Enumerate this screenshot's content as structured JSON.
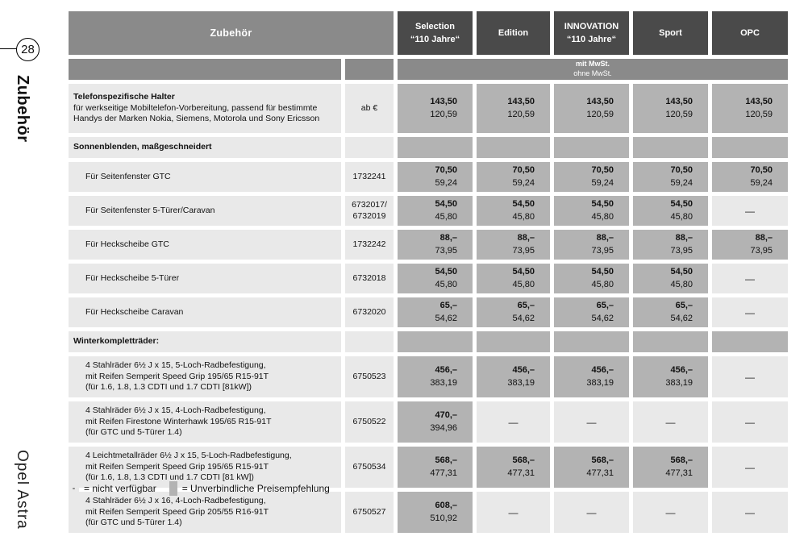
{
  "colors": {
    "dark_header": "#4a4a4a",
    "band": "#8a8a8a",
    "price_cell": "#b3b3b3",
    "row_light": "#e9e9e9"
  },
  "page": {
    "page_number": "28",
    "rotated_top": "Zubehör",
    "rotated_bottom": "Opel Astra"
  },
  "table": {
    "title": "Zubehör",
    "columns": [
      {
        "lines": [
          "Selection",
          "“110 Jahre“"
        ]
      },
      {
        "lines": [
          "Edition"
        ]
      },
      {
        "lines": [
          "INNOVATION",
          "“110 Jahre“"
        ]
      },
      {
        "lines": [
          "Sport"
        ]
      },
      {
        "lines": [
          "OPC"
        ]
      }
    ],
    "tax_note": {
      "line1": "mit MwSt.",
      "line2": "ohne MwSt."
    },
    "rows": [
      {
        "type": "item",
        "indent": false,
        "lines": [
          {
            "text": "Telefonspezifische Halter",
            "bold": true
          },
          {
            "text": "für werkseitige Mobiltelefon-Vorbereitung, passend für bestimmte"
          },
          {
            "text": "Handys der Marken Nokia, Siemens, Motorola und Sony Ericsson"
          }
        ],
        "article": [
          "ab €"
        ],
        "prices": [
          {
            "g": "143,50",
            "n": "120,59"
          },
          {
            "g": "143,50",
            "n": "120,59"
          },
          {
            "g": "143,50",
            "n": "120,59"
          },
          {
            "g": "143,50",
            "n": "120,59"
          },
          {
            "g": "143,50",
            "n": "120,59"
          }
        ]
      },
      {
        "type": "section",
        "lines": [
          {
            "text": "Sonnenblenden, maßgeschneidert",
            "bold": true
          }
        ],
        "article": [],
        "prices": [
          {
            "blank": true
          },
          {
            "blank": true
          },
          {
            "blank": true
          },
          {
            "blank": true
          },
          {
            "blank": true
          }
        ]
      },
      {
        "type": "item",
        "indent": true,
        "lines": [
          {
            "text": "Für Seitenfenster GTC"
          }
        ],
        "article": [
          "1732241"
        ],
        "prices": [
          {
            "g": "70,50",
            "n": "59,24"
          },
          {
            "g": "70,50",
            "n": "59,24"
          },
          {
            "g": "70,50",
            "n": "59,24"
          },
          {
            "g": "70,50",
            "n": "59,24"
          },
          {
            "g": "70,50",
            "n": "59,24"
          }
        ]
      },
      {
        "type": "item",
        "indent": true,
        "lines": [
          {
            "text": "Für Seitenfenster 5-Türer/Caravan"
          }
        ],
        "article": [
          "6732017/",
          "6732019"
        ],
        "prices": [
          {
            "g": "54,50",
            "n": "45,80"
          },
          {
            "g": "54,50",
            "n": "45,80"
          },
          {
            "g": "54,50",
            "n": "45,80"
          },
          {
            "g": "54,50",
            "n": "45,80"
          },
          {
            "dash": true
          }
        ]
      },
      {
        "type": "item",
        "indent": true,
        "lines": [
          {
            "text": "Für Heckscheibe GTC"
          }
        ],
        "article": [
          "1732242"
        ],
        "prices": [
          {
            "g": "88,–",
            "n": "73,95"
          },
          {
            "g": "88,–",
            "n": "73,95"
          },
          {
            "g": "88,–",
            "n": "73,95"
          },
          {
            "g": "88,–",
            "n": "73,95"
          },
          {
            "g": "88,–",
            "n": "73,95"
          }
        ]
      },
      {
        "type": "item",
        "indent": true,
        "lines": [
          {
            "text": "Für Heckscheibe 5-Türer"
          }
        ],
        "article": [
          "6732018"
        ],
        "prices": [
          {
            "g": "54,50",
            "n": "45,80"
          },
          {
            "g": "54,50",
            "n": "45,80"
          },
          {
            "g": "54,50",
            "n": "45,80"
          },
          {
            "g": "54,50",
            "n": "45,80"
          },
          {
            "dash": true
          }
        ]
      },
      {
        "type": "item",
        "indent": true,
        "lines": [
          {
            "text": "Für Heckscheibe Caravan"
          }
        ],
        "article": [
          "6732020"
        ],
        "prices": [
          {
            "g": "65,–",
            "n": "54,62"
          },
          {
            "g": "65,–",
            "n": "54,62"
          },
          {
            "g": "65,–",
            "n": "54,62"
          },
          {
            "g": "65,–",
            "n": "54,62"
          },
          {
            "dash": true
          }
        ]
      },
      {
        "type": "section",
        "lines": [
          {
            "text": "Winterkompletträder:",
            "bold": true
          }
        ],
        "article": [],
        "prices": [
          {
            "blank": true
          },
          {
            "blank": true
          },
          {
            "blank": true
          },
          {
            "blank": true
          },
          {
            "blank": true
          }
        ]
      },
      {
        "type": "item",
        "indent": true,
        "lines": [
          {
            "text": "4 Stahlräder 6½ J x 15, 5-Loch-Radbefestigung,"
          },
          {
            "text": "mit Reifen Semperit Speed Grip 195/65 R15-91T"
          },
          {
            "text": "(für 1.6, 1.8, 1.3 CDTI und 1.7 CDTI [81kW])"
          }
        ],
        "article": [
          "6750523"
        ],
        "prices": [
          {
            "g": "456,–",
            "n": "383,19"
          },
          {
            "g": "456,–",
            "n": "383,19"
          },
          {
            "g": "456,–",
            "n": "383,19"
          },
          {
            "g": "456,–",
            "n": "383,19"
          },
          {
            "dash": true
          }
        ]
      },
      {
        "type": "item",
        "indent": true,
        "lines": [
          {
            "text": "4 Stahlräder 6½ J x 15, 4-Loch-Radbefestigung,"
          },
          {
            "text": "mit Reifen Firestone Winterhawk 195/65 R15-91T"
          },
          {
            "text": "(für GTC und 5-Türer 1.4)"
          }
        ],
        "article": [
          "6750522"
        ],
        "prices": [
          {
            "g": "470,–",
            "n": "394,96"
          },
          {
            "dash": true
          },
          {
            "dash": true
          },
          {
            "dash": true
          },
          {
            "dash": true
          }
        ]
      },
      {
        "type": "item",
        "indent": true,
        "lines": [
          {
            "text": "4 Leichtmetallräder 6½ J x 15, 5-Loch-Radbefestigung,"
          },
          {
            "text": "mit Reifen Semperit Speed Grip 195/65 R15-91T"
          },
          {
            "text": "(für 1.6, 1.8, 1.3 CDTI und 1.7 CDTI [81 kW])"
          }
        ],
        "article": [
          "6750534"
        ],
        "prices": [
          {
            "g": "568,–",
            "n": "477,31"
          },
          {
            "g": "568,–",
            "n": "477,31"
          },
          {
            "g": "568,–",
            "n": "477,31"
          },
          {
            "g": "568,–",
            "n": "477,31"
          },
          {
            "dash": true
          }
        ]
      },
      {
        "type": "item",
        "indent": true,
        "lines": [
          {
            "text": "4 Stahlräder 6½ J x 16, 4-Loch-Radbefestigung,"
          },
          {
            "text": "mit Reifen Semperit Speed Grip 205/55 R16-91T"
          },
          {
            "text": "(für GTC und 5-Türer 1.4)"
          }
        ],
        "article": [
          "6750527"
        ],
        "prices": [
          {
            "g": "608,–",
            "n": "510,92"
          },
          {
            "dash": true
          },
          {
            "dash": true
          },
          {
            "dash": true
          },
          {
            "dash": true
          }
        ]
      }
    ],
    "na_dash": "—",
    "column_keys": [
      "selection",
      "edition",
      "innovation",
      "sport",
      "opc"
    ]
  },
  "legend": {
    "na_symbol": "-",
    "na_text": "= nicht verfügbar",
    "swatch_text": "= Unverbindliche Preisempfehlung"
  }
}
